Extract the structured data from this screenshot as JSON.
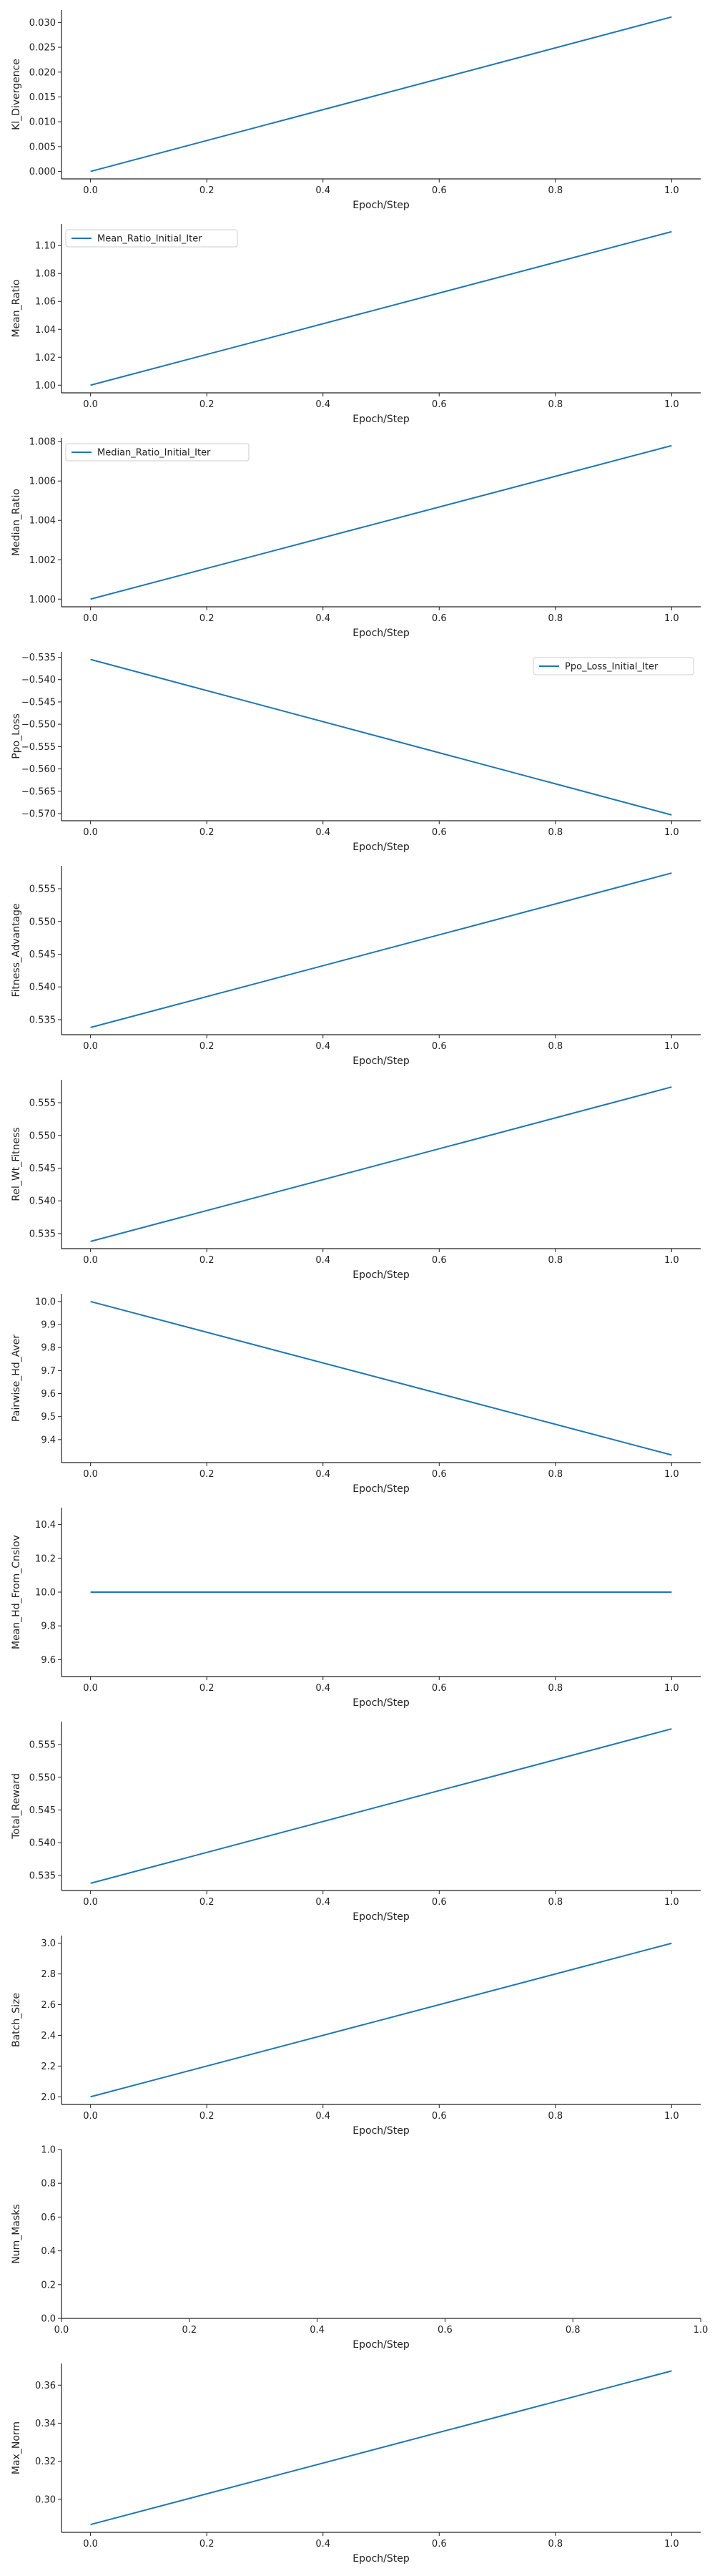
{
  "style": {
    "line_color": "#1f77b4",
    "axis_color": "#222222",
    "legend_border": "#cccccc"
  },
  "chart_data": [
    {
      "type": "line",
      "xlabel": "Epoch/Step",
      "ylabel": "Kl_Divergence",
      "xlim": [
        -0.05,
        1.05
      ],
      "ylim": [
        -0.0015,
        0.0325
      ],
      "xticks": [
        0.0,
        0.2,
        0.4,
        0.6,
        0.8,
        1.0
      ],
      "yticks": [
        0.0,
        0.005,
        0.01,
        0.015,
        0.02,
        0.025,
        0.03
      ],
      "ytick_labels": [
        "0.000",
        "0.005",
        "0.010",
        "0.015",
        "0.020",
        "0.025",
        "0.030"
      ],
      "series": [
        {
          "x": [
            0,
            1
          ],
          "y": [
            0.0,
            0.0311
          ]
        }
      ]
    },
    {
      "type": "line",
      "xlabel": "Epoch/Step",
      "ylabel": "Mean_Ratio",
      "xlim": [
        -0.05,
        1.05
      ],
      "ylim": [
        0.9945,
        1.1155
      ],
      "xticks": [
        0.0,
        0.2,
        0.4,
        0.6,
        0.8,
        1.0
      ],
      "yticks": [
        1.0,
        1.02,
        1.04,
        1.06,
        1.08,
        1.1
      ],
      "ytick_labels": [
        "1.00",
        "1.02",
        "1.04",
        "1.06",
        "1.08",
        "1.10"
      ],
      "legend": "upper left",
      "series": [
        {
          "name": "Mean_Ratio_Initial_Iter",
          "x": [
            0,
            1
          ],
          "y": [
            1.0,
            1.11
          ]
        }
      ]
    },
    {
      "type": "line",
      "xlabel": "Epoch/Step",
      "ylabel": "Median_Ratio",
      "xlim": [
        -0.05,
        1.05
      ],
      "ylim": [
        0.99961,
        1.00819
      ],
      "xticks": [
        0.0,
        0.2,
        0.4,
        0.6,
        0.8,
        1.0
      ],
      "yticks": [
        1.0,
        1.002,
        1.004,
        1.006,
        1.008
      ],
      "ytick_labels": [
        "1.000",
        "1.002",
        "1.004",
        "1.006",
        "1.008"
      ],
      "legend": "upper left",
      "series": [
        {
          "name": "Median_Ratio_Initial_Iter",
          "x": [
            0,
            1
          ],
          "y": [
            1.0,
            1.0078
          ]
        }
      ]
    },
    {
      "type": "line",
      "xlabel": "Epoch/Step",
      "ylabel": "Ppo_Loss",
      "xlim": [
        -0.05,
        1.05
      ],
      "ylim": [
        -0.5716,
        -0.5338
      ],
      "xticks": [
        0.0,
        0.2,
        0.4,
        0.6,
        0.8,
        1.0
      ],
      "yticks": [
        -0.57,
        -0.565,
        -0.56,
        -0.555,
        -0.55,
        -0.545,
        -0.54,
        -0.535
      ],
      "ytick_labels": [
        "−0.570",
        "−0.565",
        "−0.560",
        "−0.555",
        "−0.550",
        "−0.545",
        "−0.540",
        "−0.535"
      ],
      "legend": "upper right",
      "series": [
        {
          "name": "Ppo_Loss_Initial_Iter",
          "x": [
            0,
            1
          ],
          "y": [
            -0.5355,
            -0.5703
          ]
        }
      ]
    },
    {
      "type": "line",
      "xlabel": "Epoch/Step",
      "ylabel": "Fitness_Advantage",
      "xlim": [
        -0.05,
        1.05
      ],
      "ylim": [
        0.5327,
        0.5585
      ],
      "xticks": [
        0.0,
        0.2,
        0.4,
        0.6,
        0.8,
        1.0
      ],
      "yticks": [
        0.535,
        0.54,
        0.545,
        0.55,
        0.555
      ],
      "ytick_labels": [
        "0.535",
        "0.540",
        "0.545",
        "0.550",
        "0.555"
      ],
      "series": [
        {
          "x": [
            0,
            1
          ],
          "y": [
            0.5338,
            0.5574
          ]
        }
      ]
    },
    {
      "type": "line",
      "xlabel": "Epoch/Step",
      "ylabel": "Rel_Wt_Fitness",
      "xlim": [
        -0.05,
        1.05
      ],
      "ylim": [
        0.5327,
        0.5585
      ],
      "xticks": [
        0.0,
        0.2,
        0.4,
        0.6,
        0.8,
        1.0
      ],
      "yticks": [
        0.535,
        0.54,
        0.545,
        0.55,
        0.555
      ],
      "ytick_labels": [
        "0.535",
        "0.540",
        "0.545",
        "0.550",
        "0.555"
      ],
      "series": [
        {
          "x": [
            0,
            1
          ],
          "y": [
            0.5338,
            0.5574
          ]
        }
      ]
    },
    {
      "type": "line",
      "xlabel": "Epoch/Step",
      "ylabel": "Pairwise_Hd_Aver",
      "xlim": [
        -0.05,
        1.05
      ],
      "ylim": [
        9.3,
        10.034
      ],
      "xticks": [
        0.0,
        0.2,
        0.4,
        0.6,
        0.8,
        1.0
      ],
      "yticks": [
        9.4,
        9.5,
        9.6,
        9.7,
        9.8,
        9.9,
        10.0
      ],
      "ytick_labels": [
        "9.4",
        "9.5",
        "9.6",
        "9.7",
        "9.8",
        "9.9",
        "10.0"
      ],
      "series": [
        {
          "x": [
            0,
            1
          ],
          "y": [
            10.0,
            9.333
          ]
        }
      ]
    },
    {
      "type": "line",
      "xlabel": "Epoch/Step",
      "ylabel": "Mean_Hd_From_Cnslov",
      "xlim": [
        -0.05,
        1.05
      ],
      "ylim": [
        9.5,
        10.5
      ],
      "xticks": [
        0.0,
        0.2,
        0.4,
        0.6,
        0.8,
        1.0
      ],
      "yticks": [
        9.6,
        9.8,
        10.0,
        10.2,
        10.4
      ],
      "ytick_labels": [
        "9.6",
        "9.8",
        "10.0",
        "10.2",
        "10.4"
      ],
      "series": [
        {
          "x": [
            0,
            1
          ],
          "y": [
            10.0,
            10.0
          ]
        }
      ]
    },
    {
      "type": "line",
      "xlabel": "Epoch/Step",
      "ylabel": "Total_Reward",
      "xlim": [
        -0.05,
        1.05
      ],
      "ylim": [
        0.5327,
        0.5585
      ],
      "xticks": [
        0.0,
        0.2,
        0.4,
        0.6,
        0.8,
        1.0
      ],
      "yticks": [
        0.535,
        0.54,
        0.545,
        0.55,
        0.555
      ],
      "ytick_labels": [
        "0.535",
        "0.540",
        "0.545",
        "0.550",
        "0.555"
      ],
      "series": [
        {
          "x": [
            0,
            1
          ],
          "y": [
            0.5338,
            0.5574
          ]
        }
      ]
    },
    {
      "type": "line",
      "xlabel": "Epoch/Step",
      "ylabel": "Batch_Size",
      "xlim": [
        -0.05,
        1.05
      ],
      "ylim": [
        1.95,
        3.05
      ],
      "xticks": [
        0.0,
        0.2,
        0.4,
        0.6,
        0.8,
        1.0
      ],
      "yticks": [
        2.0,
        2.2,
        2.4,
        2.6,
        2.8,
        3.0
      ],
      "ytick_labels": [
        "2.0",
        "2.2",
        "2.4",
        "2.6",
        "2.8",
        "3.0"
      ],
      "series": [
        {
          "x": [
            0,
            1
          ],
          "y": [
            2.0,
            3.0
          ]
        }
      ]
    },
    {
      "type": "line",
      "xlabel": "Epoch/Step",
      "ylabel": "Num_Masks",
      "xlim": [
        0.0,
        1.0
      ],
      "ylim": [
        0.0,
        1.0
      ],
      "xticks": [
        0.0,
        0.2,
        0.4,
        0.6,
        0.8,
        1.0
      ],
      "yticks": [
        0.0,
        0.2,
        0.4,
        0.6,
        0.8,
        1.0
      ],
      "ytick_labels": [
        "0.0",
        "0.2",
        "0.4",
        "0.6",
        "0.8",
        "1.0"
      ],
      "series": []
    },
    {
      "type": "line",
      "xlabel": "Epoch/Step",
      "ylabel": "Max_Norm",
      "xlim": [
        -0.05,
        1.05
      ],
      "ylim": [
        0.2826,
        0.3714
      ],
      "xticks": [
        0.0,
        0.2,
        0.4,
        0.6,
        0.8,
        1.0
      ],
      "yticks": [
        0.3,
        0.32,
        0.34,
        0.36
      ],
      "ytick_labels": [
        "0.30",
        "0.32",
        "0.34",
        "0.36"
      ],
      "series": [
        {
          "x": [
            0,
            1
          ],
          "y": [
            0.2867,
            0.3675
          ]
        }
      ]
    }
  ]
}
